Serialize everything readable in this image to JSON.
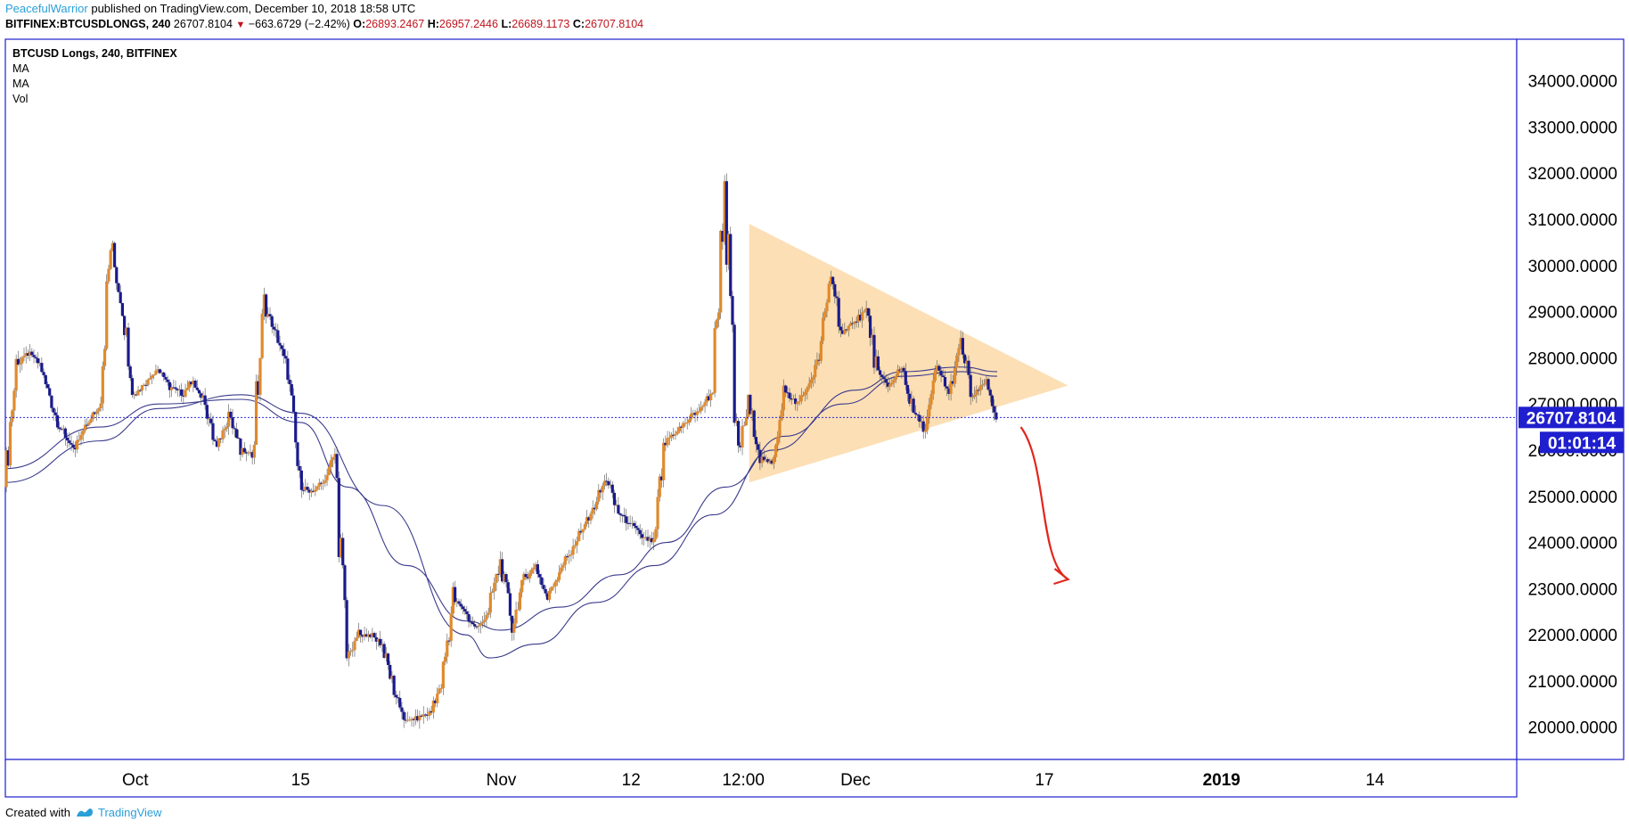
{
  "header": {
    "author": "PeacefulWarrior",
    "published": "published on TradingView.com, December 10, 2018 18:58 UTC",
    "symbol": "BITFINEX:BTCUSDLONGS, 240",
    "last": "26707.8104",
    "change_arrow": "▼",
    "change": "−663.6729 (−2.42%)",
    "o_label": "O:",
    "o_value": "26893.2467",
    "h_label": "H:",
    "h_value": "26957.2446",
    "l_label": "L:",
    "l_value": "26689.1173",
    "c_label": "C:",
    "c_value": "26707.8104"
  },
  "legend": {
    "title": "BTCUSD Longs, 240, BITFINEX",
    "items": [
      "MA",
      "MA",
      "Vol"
    ]
  },
  "price_label": "26707.8104",
  "countdown_label": "01:01:14",
  "footer": {
    "created_with": "Created with",
    "brand": "TradingView"
  },
  "colors": {
    "up_candle": "#e08a2c",
    "down_candle": "#1a1a8c",
    "ma": "#3a3a8c",
    "triangle": "#fcd9a8",
    "arrow": "#e3261c",
    "price_line": "#2b2bd6",
    "axis_border": "#1f1fcf",
    "tag_bg": "#1f1fcf"
  },
  "chart_data": {
    "type": "candlestick",
    "y_axis": {
      "side": "right",
      "ylim": [
        19300,
        34900
      ],
      "ticks": [
        20000,
        21000,
        22000,
        23000,
        24000,
        25000,
        26000,
        27000,
        28000,
        29000,
        30000,
        31000,
        32000,
        33000,
        34000
      ],
      "tick_labels": [
        "20000.0000",
        "21000.0000",
        "22000.0000",
        "23000.0000",
        "24000.0000",
        "25000.0000",
        "26000.0000",
        "27000.0000",
        "28000.0000",
        "29000.0000",
        "30000.0000",
        "31000.0000",
        "32000.0000",
        "33000.0000",
        "34000.0000"
      ]
    },
    "x_axis": {
      "range": [
        "2018-09-20",
        "2019-01-26"
      ],
      "ticks": [
        {
          "label": "Oct",
          "date": "2018-10-01",
          "bold": false
        },
        {
          "label": "15",
          "date": "2018-10-15",
          "bold": false
        },
        {
          "label": "Nov",
          "date": "2018-11-01",
          "bold": false
        },
        {
          "label": "12",
          "date": "2018-11-12",
          "bold": false
        },
        {
          "label": "12:00",
          "date": "2018-11-21T12:00",
          "bold": false
        },
        {
          "label": "Dec",
          "date": "2018-12-01",
          "bold": false
        },
        {
          "label": "17",
          "date": "2018-12-17",
          "bold": false
        },
        {
          "label": "2019",
          "date": "2019-01-01",
          "bold": true
        },
        {
          "label": "14",
          "date": "2019-01-14",
          "bold": false
        }
      ]
    },
    "close_path": [
      [
        "2018-09-20",
        25200
      ],
      [
        "2018-09-21",
        27800
      ],
      [
        "2018-09-22",
        28100
      ],
      [
        "2018-09-23",
        27900
      ],
      [
        "2018-09-24",
        27000
      ],
      [
        "2018-09-25",
        26300
      ],
      [
        "2018-09-26",
        26000
      ],
      [
        "2018-09-27",
        26600
      ],
      [
        "2018-09-28",
        26900
      ],
      [
        "2018-09-29",
        30500
      ],
      [
        "2018-09-30",
        29100
      ],
      [
        "2018-10-01",
        27200
      ],
      [
        "2018-10-02",
        27500
      ],
      [
        "2018-10-03",
        27800
      ],
      [
        "2018-10-04",
        27400
      ],
      [
        "2018-10-05",
        27200
      ],
      [
        "2018-10-06",
        27500
      ],
      [
        "2018-10-07",
        27000
      ],
      [
        "2018-10-08",
        26000
      ],
      [
        "2018-10-09",
        26800
      ],
      [
        "2018-10-10",
        26000
      ],
      [
        "2018-10-11",
        25900
      ],
      [
        "2018-10-12",
        29100
      ],
      [
        "2018-10-13",
        28500
      ],
      [
        "2018-10-14",
        27700
      ],
      [
        "2018-10-15",
        25200
      ],
      [
        "2018-10-16",
        25100
      ],
      [
        "2018-10-17",
        25300
      ],
      [
        "2018-10-18",
        25900
      ],
      [
        "2018-10-19",
        21500
      ],
      [
        "2018-10-20",
        22000
      ],
      [
        "2018-10-21",
        22000
      ],
      [
        "2018-10-22",
        21800
      ],
      [
        "2018-10-23",
        20800
      ],
      [
        "2018-10-24",
        20100
      ],
      [
        "2018-10-25",
        20200
      ],
      [
        "2018-10-26",
        20300
      ],
      [
        "2018-10-27",
        20900
      ],
      [
        "2018-10-28",
        22800
      ],
      [
        "2018-10-29",
        22500
      ],
      [
        "2018-10-30",
        22100
      ],
      [
        "2018-10-31",
        22500
      ],
      [
        "2018-11-01",
        23600
      ],
      [
        "2018-11-02",
        22200
      ],
      [
        "2018-11-03",
        23200
      ],
      [
        "2018-11-04",
        23500
      ],
      [
        "2018-11-05",
        22800
      ],
      [
        "2018-11-06",
        23400
      ],
      [
        "2018-11-07",
        23800
      ],
      [
        "2018-11-08",
        24300
      ],
      [
        "2018-11-09",
        24800
      ],
      [
        "2018-11-10",
        25400
      ],
      [
        "2018-11-11",
        24600
      ],
      [
        "2018-11-12",
        24400
      ],
      [
        "2018-11-13",
        24100
      ],
      [
        "2018-11-14",
        24000
      ],
      [
        "2018-11-15",
        26200
      ],
      [
        "2018-11-16",
        26400
      ],
      [
        "2018-11-17",
        26700
      ],
      [
        "2018-11-18",
        26900
      ],
      [
        "2018-11-19",
        27300
      ],
      [
        "2018-11-20",
        31800
      ],
      [
        "2018-11-21",
        25800
      ],
      [
        "2018-11-22",
        27000
      ],
      [
        "2018-11-23",
        25900
      ],
      [
        "2018-11-24",
        25700
      ],
      [
        "2018-11-25",
        27300
      ],
      [
        "2018-11-26",
        27000
      ],
      [
        "2018-11-27",
        27300
      ],
      [
        "2018-11-28",
        28000
      ],
      [
        "2018-11-29",
        29800
      ],
      [
        "2018-11-30",
        28500
      ],
      [
        "2018-12-01",
        28800
      ],
      [
        "2018-12-02",
        29000
      ],
      [
        "2018-12-03",
        27600
      ],
      [
        "2018-12-04",
        27400
      ],
      [
        "2018-12-05",
        27800
      ],
      [
        "2018-12-06",
        26800
      ],
      [
        "2018-12-07",
        26400
      ],
      [
        "2018-12-08",
        27800
      ],
      [
        "2018-12-09",
        27200
      ],
      [
        "2018-12-10",
        28300
      ],
      [
        "2018-12-11",
        27100
      ],
      [
        "2018-12-12",
        27500
      ],
      [
        "2018-12-13",
        26707.81
      ]
    ],
    "moving_averages": [
      {
        "name": "MA",
        "points": [
          [
            "2018-09-20",
            25600
          ],
          [
            "2018-09-28",
            26500
          ],
          [
            "2018-10-03",
            27000
          ],
          [
            "2018-10-10",
            27100
          ],
          [
            "2018-10-15",
            26600
          ],
          [
            "2018-10-19",
            25200
          ],
          [
            "2018-10-24",
            23500
          ],
          [
            "2018-10-29",
            22300
          ],
          [
            "2018-11-01",
            22100
          ],
          [
            "2018-11-06",
            22600
          ],
          [
            "2018-11-11",
            23300
          ],
          [
            "2018-11-15",
            24000
          ],
          [
            "2018-11-20",
            25200
          ],
          [
            "2018-11-25",
            26300
          ],
          [
            "2018-12-01",
            27300
          ],
          [
            "2018-12-05",
            27700
          ],
          [
            "2018-12-10",
            27800
          ],
          [
            "2018-12-13",
            27700
          ]
        ]
      },
      {
        "name": "MA",
        "points": [
          [
            "2018-09-20",
            25300
          ],
          [
            "2018-09-28",
            26200
          ],
          [
            "2018-10-03",
            26900
          ],
          [
            "2018-10-10",
            27200
          ],
          [
            "2018-10-15",
            26800
          ],
          [
            "2018-10-22",
            24800
          ],
          [
            "2018-10-29",
            22000
          ],
          [
            "2018-10-31",
            21500
          ],
          [
            "2018-11-04",
            21800
          ],
          [
            "2018-11-09",
            22700
          ],
          [
            "2018-11-14",
            23500
          ],
          [
            "2018-11-19",
            24600
          ],
          [
            "2018-11-24",
            26000
          ],
          [
            "2018-11-30",
            27000
          ],
          [
            "2018-12-05",
            27600
          ],
          [
            "2018-12-10",
            27700
          ],
          [
            "2018-12-13",
            27600
          ]
        ]
      }
    ],
    "last_price": 26707.81,
    "annotations": {
      "triangle": [
        [
          "2018-11-22",
          30900
        ],
        [
          "2018-12-19",
          27400
        ],
        [
          "2018-11-22",
          25300
        ]
      ],
      "arrow": {
        "from": [
          "2018-12-15",
          26500
        ],
        "to": [
          "2018-12-19",
          23200
        ]
      }
    }
  }
}
